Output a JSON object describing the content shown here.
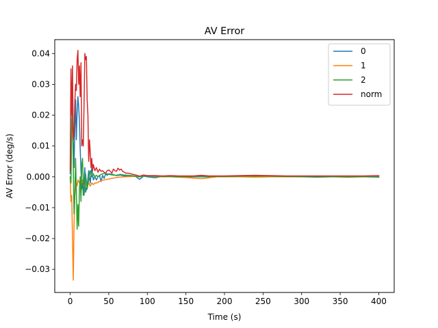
{
  "chart_data": {
    "type": "line",
    "title": "AV Error",
    "xlabel": "Time (s)",
    "ylabel": "AV Error (deg/s)",
    "xlim": [
      -20,
      420
    ],
    "ylim": [
      -0.0375,
      0.0445
    ],
    "xticks": [
      0,
      50,
      100,
      150,
      200,
      250,
      300,
      350,
      400
    ],
    "yticks": [
      -0.03,
      -0.02,
      -0.01,
      0.0,
      0.01,
      0.02,
      0.03,
      0.04
    ],
    "xtick_labels": [
      "0",
      "50",
      "100",
      "150",
      "200",
      "250",
      "300",
      "350",
      "400"
    ],
    "ytick_labels": [
      "−0.03",
      "−0.02",
      "−0.01",
      "0.000",
      "0.01",
      "0.02",
      "0.03",
      "0.04"
    ],
    "legend_position": "top-right",
    "grid": false,
    "series": [
      {
        "name": "0",
        "color": "#1f77b4",
        "points": [
          [
            0,
            0.001
          ],
          [
            1,
            0.008
          ],
          [
            2,
            0.018
          ],
          [
            3,
            0.028
          ],
          [
            4,
            0.012
          ],
          [
            5,
            0.003
          ],
          [
            6,
            0.016
          ],
          [
            7,
            0.025
          ],
          [
            8,
            0.012
          ],
          [
            9,
            0.021
          ],
          [
            10,
            0.026
          ],
          [
            11,
            0.023
          ],
          [
            12,
            0.018
          ],
          [
            13,
            0.009
          ],
          [
            14,
            0.002
          ],
          [
            15,
            -0.004
          ],
          [
            16,
            -0.001
          ],
          [
            17,
            -0.006
          ],
          [
            18,
            -0.002
          ],
          [
            19,
            0.003
          ],
          [
            20,
            -0.005
          ],
          [
            22,
            -0.003
          ],
          [
            24,
            0.002
          ],
          [
            26,
            -0.002
          ],
          [
            28,
            0.003
          ],
          [
            30,
            -0.001
          ],
          [
            32,
            0.0
          ],
          [
            34,
            -0.001
          ],
          [
            36,
            0.0
          ],
          [
            38,
            0.0005
          ],
          [
            40,
            -0.0015
          ],
          [
            42,
            0.0005
          ],
          [
            44,
            -0.0005
          ],
          [
            46,
            0.001
          ],
          [
            48,
            0.0005
          ],
          [
            50,
            0.001
          ],
          [
            55,
            0.0008
          ],
          [
            60,
            0.0004
          ],
          [
            65,
            0.0006
          ],
          [
            70,
            0.0003
          ],
          [
            75,
            0.0004
          ],
          [
            80,
            0.0002
          ],
          [
            85,
            0.0001
          ],
          [
            90,
            -0.0008
          ],
          [
            95,
            0.0002
          ],
          [
            100,
            0.0
          ],
          [
            110,
            -0.0003
          ],
          [
            120,
            0.0002
          ],
          [
            130,
            0.0
          ],
          [
            140,
            0.0002
          ],
          [
            150,
            -0.0002
          ],
          [
            160,
            0.0
          ],
          [
            170,
            0.0
          ],
          [
            180,
            0.0
          ],
          [
            200,
            0.0001
          ],
          [
            220,
            0.0002
          ],
          [
            240,
            0.0001
          ],
          [
            260,
            0.0
          ],
          [
            280,
            0.0001
          ],
          [
            300,
            0.0
          ],
          [
            320,
            -0.0001
          ],
          [
            340,
            0.0
          ],
          [
            360,
            0.0
          ],
          [
            380,
            0.0
          ],
          [
            400,
            -0.0001
          ]
        ]
      },
      {
        "name": "1",
        "color": "#ff7f0e",
        "points": [
          [
            0,
            0.0
          ],
          [
            1,
            -0.008
          ],
          [
            2,
            -0.006
          ],
          [
            3,
            -0.02
          ],
          [
            4,
            -0.0335
          ],
          [
            5,
            -0.016
          ],
          [
            6,
            -0.006
          ],
          [
            7,
            -0.004
          ],
          [
            8,
            -0.002
          ],
          [
            9,
            -0.003
          ],
          [
            10,
            -0.001
          ],
          [
            12,
            -0.002
          ],
          [
            14,
            -0.003
          ],
          [
            16,
            -0.001
          ],
          [
            18,
            -0.003
          ],
          [
            20,
            -0.002
          ],
          [
            22,
            -0.003
          ],
          [
            24,
            -0.002
          ],
          [
            26,
            -0.003
          ],
          [
            28,
            -0.002
          ],
          [
            30,
            -0.0025
          ],
          [
            32,
            -0.002
          ],
          [
            34,
            -0.002
          ],
          [
            36,
            -0.0018
          ],
          [
            38,
            -0.0015
          ],
          [
            40,
            -0.0012
          ],
          [
            44,
            -0.001
          ],
          [
            48,
            -0.0008
          ],
          [
            52,
            -0.0006
          ],
          [
            56,
            -0.0004
          ],
          [
            60,
            -0.0002
          ],
          [
            64,
            -0.0001
          ],
          [
            70,
            0.0
          ],
          [
            80,
            0.0001
          ],
          [
            90,
            0.0002
          ],
          [
            100,
            0.0002
          ],
          [
            110,
            0.0001
          ],
          [
            120,
            0.0
          ],
          [
            130,
            0.0
          ],
          [
            140,
            -0.0001
          ],
          [
            150,
            -0.0002
          ],
          [
            160,
            -0.0004
          ],
          [
            170,
            -0.0006
          ],
          [
            180,
            -0.0003
          ],
          [
            190,
            0.0
          ],
          [
            200,
            0.0
          ],
          [
            220,
            0.0
          ],
          [
            240,
            -0.0001
          ],
          [
            260,
            0.0
          ],
          [
            280,
            0.0
          ],
          [
            300,
            0.0
          ],
          [
            320,
            0.0
          ],
          [
            340,
            0.0001
          ],
          [
            360,
            0.0001
          ],
          [
            380,
            0.0001
          ],
          [
            400,
            0.0001
          ]
        ]
      },
      {
        "name": "2",
        "color": "#2ca02c",
        "points": [
          [
            0,
            0.0
          ],
          [
            1,
            -0.002
          ],
          [
            2,
            0.014
          ],
          [
            3,
            0.023
          ],
          [
            4,
            0.004
          ],
          [
            5,
            -0.012
          ],
          [
            6,
            -0.006
          ],
          [
            7,
            0.006
          ],
          [
            8,
            -0.005
          ],
          [
            9,
            -0.017
          ],
          [
            10,
            -0.009
          ],
          [
            11,
            -0.016
          ],
          [
            12,
            -0.004
          ],
          [
            13,
            0.0
          ],
          [
            14,
            -0.008
          ],
          [
            15,
            0.004
          ],
          [
            16,
            0.006
          ],
          [
            17,
            -0.002
          ],
          [
            18,
            -0.006
          ],
          [
            19,
            -0.003
          ],
          [
            20,
            0.001
          ],
          [
            22,
            -0.004
          ],
          [
            24,
            -0.001
          ],
          [
            26,
            0.002
          ],
          [
            28,
            0.0
          ],
          [
            30,
            0.001
          ],
          [
            32,
            0.0
          ],
          [
            34,
            0.0005
          ],
          [
            36,
            0.0
          ],
          [
            40,
            0.0008
          ],
          [
            45,
            0.0012
          ],
          [
            50,
            0.0008
          ],
          [
            55,
            0.0006
          ],
          [
            60,
            0.0005
          ],
          [
            65,
            0.0008
          ],
          [
            70,
            0.0006
          ],
          [
            75,
            0.0005
          ],
          [
            80,
            0.0004
          ],
          [
            85,
            0.0002
          ],
          [
            90,
            0.0
          ],
          [
            95,
            0.0002
          ],
          [
            100,
            0.0002
          ],
          [
            110,
            0.0002
          ],
          [
            120,
            0.0001
          ],
          [
            130,
            0.0001
          ],
          [
            140,
            0.0
          ],
          [
            150,
            0.0
          ],
          [
            160,
            0.0001
          ],
          [
            170,
            0.0002
          ],
          [
            180,
            0.0001
          ],
          [
            200,
            0.0001
          ],
          [
            220,
            0.0002
          ],
          [
            240,
            0.0003
          ],
          [
            260,
            0.0002
          ],
          [
            280,
            0.0001
          ],
          [
            300,
            0.0
          ],
          [
            320,
            0.0
          ],
          [
            340,
            0.0
          ],
          [
            360,
            -0.0001
          ],
          [
            380,
            0.0
          ],
          [
            400,
            0.0
          ]
        ]
      },
      {
        "name": "norm",
        "color": "#d62728",
        "points": [
          [
            0,
            0.002
          ],
          [
            1,
            0.035
          ],
          [
            2,
            0.02
          ],
          [
            3,
            0.036
          ],
          [
            4,
            0.012
          ],
          [
            5,
            0.014
          ],
          [
            6,
            0.024
          ],
          [
            7,
            0.03
          ],
          [
            8,
            0.028
          ],
          [
            9,
            0.038
          ],
          [
            10,
            0.041
          ],
          [
            11,
            0.03
          ],
          [
            12,
            0.036
          ],
          [
            13,
            0.026
          ],
          [
            14,
            0.037
          ],
          [
            15,
            0.01
          ],
          [
            16,
            0.012
          ],
          [
            17,
            0.01
          ],
          [
            18,
            0.024
          ],
          [
            19,
            0.04
          ],
          [
            20,
            0.038
          ],
          [
            21,
            0.039
          ],
          [
            22,
            0.025
          ],
          [
            23,
            0.02
          ],
          [
            24,
            0.005
          ],
          [
            25,
            0.012
          ],
          [
            26,
            0.008
          ],
          [
            27,
            0.003
          ],
          [
            28,
            0.006
          ],
          [
            29,
            0.002
          ],
          [
            30,
            0.004
          ],
          [
            32,
            0.002
          ],
          [
            34,
            0.003
          ],
          [
            36,
            0.0015
          ],
          [
            38,
            0.0025
          ],
          [
            40,
            0.0018
          ],
          [
            42,
            0.002
          ],
          [
            44,
            0.0015
          ],
          [
            46,
            0.0012
          ],
          [
            48,
            0.002
          ],
          [
            50,
            0.0022
          ],
          [
            52,
            0.0018
          ],
          [
            54,
            0.0012
          ],
          [
            56,
            0.0025
          ],
          [
            58,
            0.002
          ],
          [
            60,
            0.0018
          ],
          [
            62,
            0.0028
          ],
          [
            64,
            0.0022
          ],
          [
            66,
            0.0025
          ],
          [
            68,
            0.0018
          ],
          [
            70,
            0.0015
          ],
          [
            72,
            0.0012
          ],
          [
            75,
            0.0012
          ],
          [
            80,
            0.0009
          ],
          [
            85,
            0.0006
          ],
          [
            90,
            0.0002
          ],
          [
            95,
            0.0006
          ],
          [
            100,
            0.0004
          ],
          [
            110,
            0.0004
          ],
          [
            120,
            0.0003
          ],
          [
            130,
            0.0004
          ],
          [
            140,
            0.0003
          ],
          [
            150,
            0.0003
          ],
          [
            160,
            0.0003
          ],
          [
            170,
            0.0005
          ],
          [
            180,
            0.0003
          ],
          [
            190,
            0.0003
          ],
          [
            200,
            0.0003
          ],
          [
            220,
            0.0004
          ],
          [
            240,
            0.0005
          ],
          [
            260,
            0.0004
          ],
          [
            280,
            0.0003
          ],
          [
            300,
            0.0003
          ],
          [
            320,
            0.0003
          ],
          [
            340,
            0.0003
          ],
          [
            360,
            0.0003
          ],
          [
            380,
            0.0003
          ],
          [
            400,
            0.0004
          ]
        ]
      }
    ]
  }
}
